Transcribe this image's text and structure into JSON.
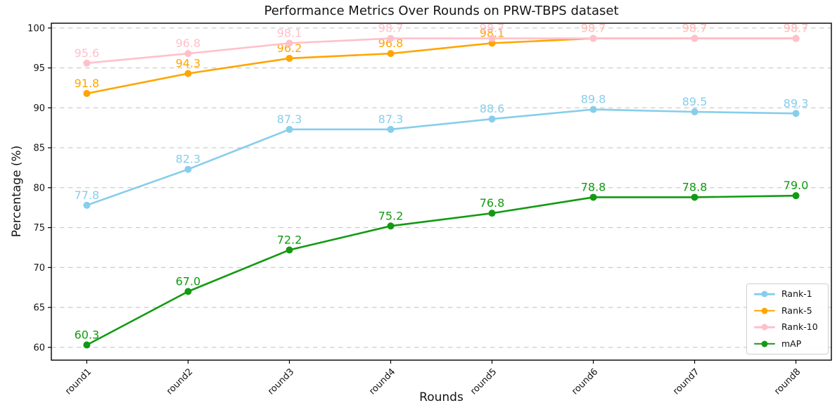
{
  "chart_data": {
    "type": "line",
    "title": "Performance Metrics Over Rounds on PRW-TBPS dataset",
    "xlabel": "Rounds",
    "ylabel": "Percentage (%)",
    "categories": [
      "round1",
      "round2",
      "round3",
      "round4",
      "round5",
      "round6",
      "round7",
      "round8"
    ],
    "series": [
      {
        "name": "Rank-1",
        "color": "#87CEEB",
        "values": [
          77.8,
          82.3,
          87.3,
          87.3,
          88.6,
          89.8,
          89.5,
          89.3
        ]
      },
      {
        "name": "Rank-5",
        "color": "#FFA500",
        "values": [
          91.8,
          94.3,
          96.2,
          96.8,
          98.1,
          98.7,
          98.7,
          98.7
        ]
      },
      {
        "name": "Rank-10",
        "color": "#FFC0CB",
        "values": [
          95.6,
          96.8,
          98.1,
          98.7,
          98.7,
          98.7,
          98.7,
          98.7
        ]
      },
      {
        "name": "mAP",
        "color": "#129a12",
        "values": [
          60.3,
          67.0,
          72.2,
          75.2,
          76.8,
          78.8,
          78.8,
          79.0
        ]
      }
    ],
    "yticks": [
      60,
      65,
      70,
      75,
      80,
      85,
      90,
      95,
      100
    ],
    "ylim": [
      58.4,
      100.6
    ],
    "grid": true,
    "grid_style": "dashed",
    "grid_color": "#c7c7c7",
    "spine_color": "#000000",
    "legend_position": "lower right",
    "data_labels": true,
    "tick_rotation_deg": 45
  }
}
